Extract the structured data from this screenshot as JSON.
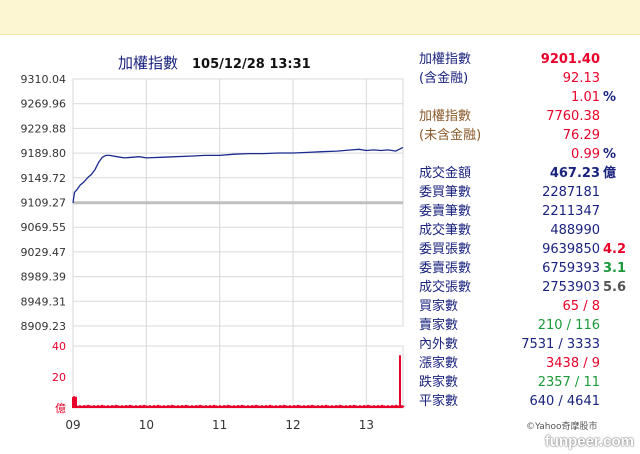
{
  "chart_data": {
    "type": "line",
    "title": "加權指數",
    "datetime": "105/12/28 13:31",
    "y_ticks": [
      "9310.04",
      "9269.96",
      "9229.88",
      "9189.80",
      "9149.72",
      "9109.27",
      "9069.55",
      "9029.47",
      "8989.39",
      "8949.31",
      "8909.23"
    ],
    "ylim": [
      8909.23,
      9310.04
    ],
    "reference_value": 9109.27,
    "x_ticks": [
      "09",
      "10",
      "11",
      "12",
      "13"
    ],
    "xlim": [
      9.0,
      13.5
    ],
    "series": [
      {
        "values": [
          [
            9.0,
            9109
          ],
          [
            9.02,
            9126
          ],
          [
            9.05,
            9130
          ],
          [
            9.1,
            9138
          ],
          [
            9.15,
            9143
          ],
          [
            9.2,
            9150
          ],
          [
            9.25,
            9155
          ],
          [
            9.3,
            9163
          ],
          [
            9.35,
            9175
          ],
          [
            9.4,
            9183
          ],
          [
            9.45,
            9186
          ],
          [
            9.5,
            9186
          ],
          [
            9.6,
            9184
          ],
          [
            9.7,
            9182
          ],
          [
            9.8,
            9183
          ],
          [
            9.9,
            9184
          ],
          [
            10.0,
            9182
          ],
          [
            10.2,
            9183
          ],
          [
            10.4,
            9184
          ],
          [
            10.6,
            9185
          ],
          [
            10.8,
            9186
          ],
          [
            11.0,
            9186
          ],
          [
            11.2,
            9188
          ],
          [
            11.4,
            9189
          ],
          [
            11.6,
            9189
          ],
          [
            11.8,
            9190
          ],
          [
            12.0,
            9190
          ],
          [
            12.2,
            9191
          ],
          [
            12.4,
            9192
          ],
          [
            12.6,
            9193
          ],
          [
            12.8,
            9195
          ],
          [
            12.9,
            9196
          ],
          [
            13.0,
            9194
          ],
          [
            13.1,
            9195
          ],
          [
            13.2,
            9194
          ],
          [
            13.3,
            9195
          ],
          [
            13.4,
            9193
          ],
          [
            13.5,
            9199
          ]
        ]
      }
    ],
    "volume": {
      "y_ticks": [
        "40",
        "20",
        "億"
      ],
      "ylim": [
        0,
        40
      ],
      "opening_spike": 7,
      "typical": 1.4,
      "closing_spike": 34
    }
  },
  "stats": [
    {
      "label": "加權指數",
      "value": "9201.40",
      "color": "#e8002a",
      "bold": true
    },
    {
      "label": "(含金融)",
      "value": "92.13",
      "color": "#e8002a"
    },
    {
      "label": "",
      "value": "1.01",
      "color": "#e8002a",
      "suffix": "%",
      "suffix_color": "#1a237e"
    },
    {
      "label": "加權指數",
      "value": "7760.38",
      "color": "#e8002a",
      "label_color": "#8b5a2b"
    },
    {
      "label": "(未含金融)",
      "value": "76.29",
      "color": "#e8002a",
      "label_color": "#8b5a2b"
    },
    {
      "label": "",
      "value": "0.99",
      "color": "#e8002a",
      "suffix": "%",
      "suffix_color": "#1a237e"
    },
    {
      "label": "成交金額",
      "value": "467.23",
      "color": "#1a237e",
      "bold": true,
      "suffix": "億",
      "suffix_color": "#1a237e"
    },
    {
      "label": "委買筆數",
      "value": "2287181",
      "color": "#1a237e"
    },
    {
      "label": "委賣筆數",
      "value": "2211347",
      "color": "#1a237e"
    },
    {
      "label": "成交筆數",
      "value": "488990",
      "color": "#1a237e"
    },
    {
      "label": "委買張數",
      "value": "9639850",
      "color": "#1a237e",
      "suffix": "4.2",
      "suffix_color": "#e8002a"
    },
    {
      "label": "委賣張數",
      "value": "6759393",
      "color": "#1a237e",
      "suffix": "3.1",
      "suffix_color": "#1a9a3a"
    },
    {
      "label": "成交張數",
      "value": "2753903",
      "color": "#1a237e",
      "suffix": "5.6",
      "suffix_color": "#555555"
    },
    {
      "label": "買家數",
      "value": "65 / 8",
      "color": "#e8002a"
    },
    {
      "label": "賣家數",
      "value": "210 / 116",
      "color": "#1a9a3a"
    },
    {
      "label": "內外數",
      "value": "7531 / 3333",
      "color": "#1a237e"
    },
    {
      "label": "漲家數",
      "value": "3438 / 9",
      "color": "#e8002a"
    },
    {
      "label": "跌家數",
      "value": "2357 / 11",
      "color": "#1a9a3a"
    },
    {
      "label": "平家數",
      "value": "640 / 4641",
      "color": "#1a237e"
    }
  ],
  "credit": "©Yahoo奇摩股市",
  "brand": "funpeer.com",
  "colors": {
    "line": "#1b2b8f",
    "volume": "#e8002a",
    "grid": "#d9d9d9",
    "reference": "#bfbfbf",
    "axis_label": "#333333"
  }
}
